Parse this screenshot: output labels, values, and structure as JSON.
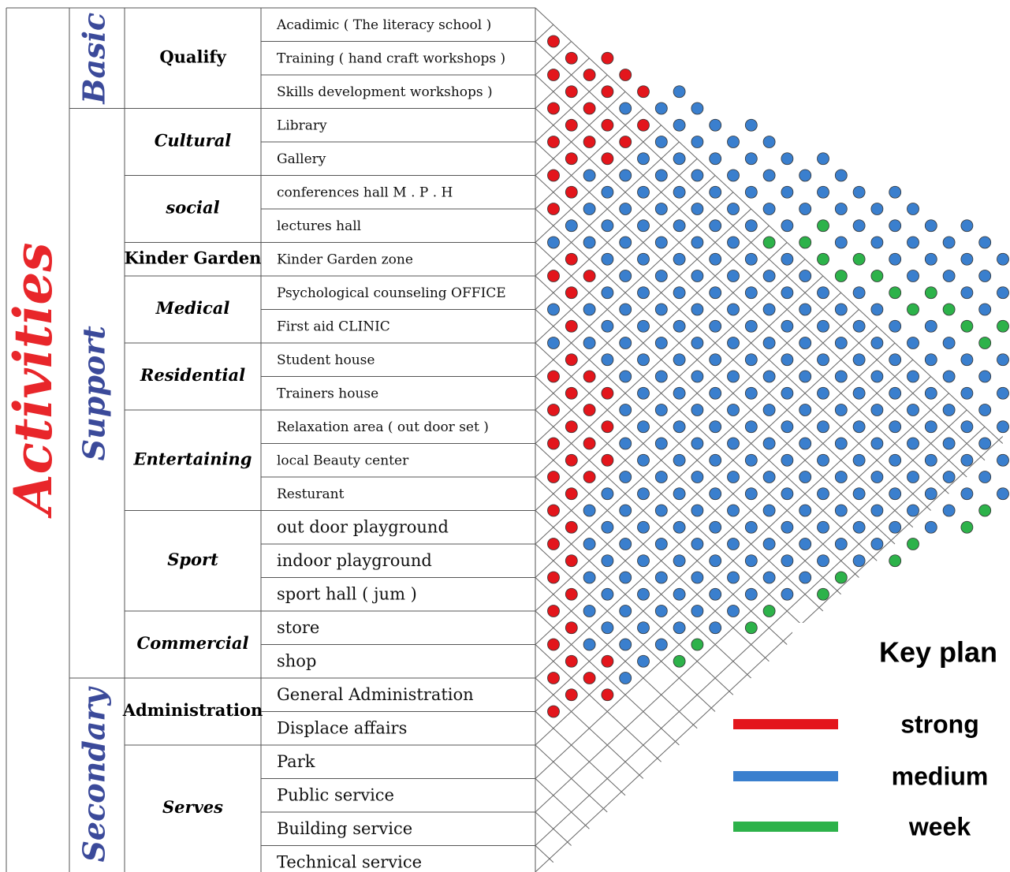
{
  "title": "Activities",
  "colors": {
    "title": "#e8262a",
    "category": "#3b4a9a",
    "strong": "#e3161c",
    "medium": "#3a7fce",
    "week": "#2db24a",
    "dot_outline": "#333333"
  },
  "categories": [
    {
      "label": "Basic",
      "groups": [
        {
          "label": "Qualify",
          "items": [
            "Acadimic  ( The literacy school )",
            "Training ( hand craft workshops )",
            "Skills development workshops )"
          ]
        }
      ]
    },
    {
      "label": "Support",
      "groups": [
        {
          "label": "Cultural",
          "items": [
            "Library",
            "Gallery"
          ]
        },
        {
          "label": "social",
          "items": [
            "conferences  hall     M  . P . H",
            "lectures hall"
          ]
        },
        {
          "label": "Kinder Garden",
          "items": [
            "Kinder Garden zone"
          ]
        },
        {
          "label": "Medical",
          "items": [
            "Psychological counseling  OFFICE",
            "First aid CLINIC"
          ]
        },
        {
          "label": "Residential",
          "items": [
            "Student house",
            "Trainers house"
          ]
        },
        {
          "label": "Entertaining",
          "items": [
            "Relaxation area ( out door set )",
            "local Beauty  center",
            "Resturant"
          ]
        },
        {
          "label": "Sport",
          "items": [
            "out door playground",
            "indoor  playground",
            "sport hall ( jum )"
          ]
        },
        {
          "label": "Commercial",
          "items": [
            "store",
            "shop"
          ]
        }
      ]
    },
    {
      "label": "Secondary",
      "groups": [
        {
          "label": "Administration",
          "items": [
            "General Administration",
            "Displace affairs"
          ]
        },
        {
          "label": "Serves",
          "items": [
            "Park",
            "Public service",
            "Building service",
            "Technical service"
          ]
        }
      ]
    }
  ],
  "matrix_rows": [
    "R",
    "RR",
    "RRR",
    "RRRB",
    "RRBBB",
    "RRRBBB",
    "RRRBBBB",
    "RRBBBBBB",
    "RBBBBBBBB",
    "RBBBBBBBBB",
    "RBBBBBBBBBB",
    "BBBBBBBGBBBB",
    "BBBBBBGGBBBBB",
    "RBBBBBBGGBBBBB",
    "RRBBBBBBGGBBBBB",
    "RBBBBBBBBGGBBBBB",
    "BBBBBBBBBBGGBBBBB",
    "RBBBBBBBBBBGGBBBBB",
    "BBBBBBBBBBBBGGBBBBB",
    "RBBBBBBBBBBBBGBBBBBB",
    "RRBBBBBBBBBBBBBBBBBBG",
    "RRBBBBBBBBBBBBBBBBBG",
    "RRBBBBBBBBBBBBBBBBG",
    "RRBBBBBBBBBBBBBBBG",
    "RRBBBBBBBBBBBBBBG",
    "RRBBBBBBBBBBBBBG",
    "RRBBBBBBBBBBBBG",
    "RBBBBBBBBBBBBG",
    "RBBBBBBBBBBBG",
    "RBBBBBBBBBBG",
    "RBBBBBBBBBG",
    "RBBBBBBBBG",
    "RBBBBBBBG",
    "RBBBBBBG",
    "RBBBBBG",
    "RBBBBG",
    "RBBBG",
    "RRBG",
    "RRB",
    "RR",
    "R"
  ],
  "key_plan": {
    "title": "Key plan",
    "entries": [
      {
        "label": "strong",
        "color": "#e3161c"
      },
      {
        "label": "medium",
        "color": "#3a7fce"
      },
      {
        "label": "week",
        "color": "#2db24a"
      }
    ]
  }
}
